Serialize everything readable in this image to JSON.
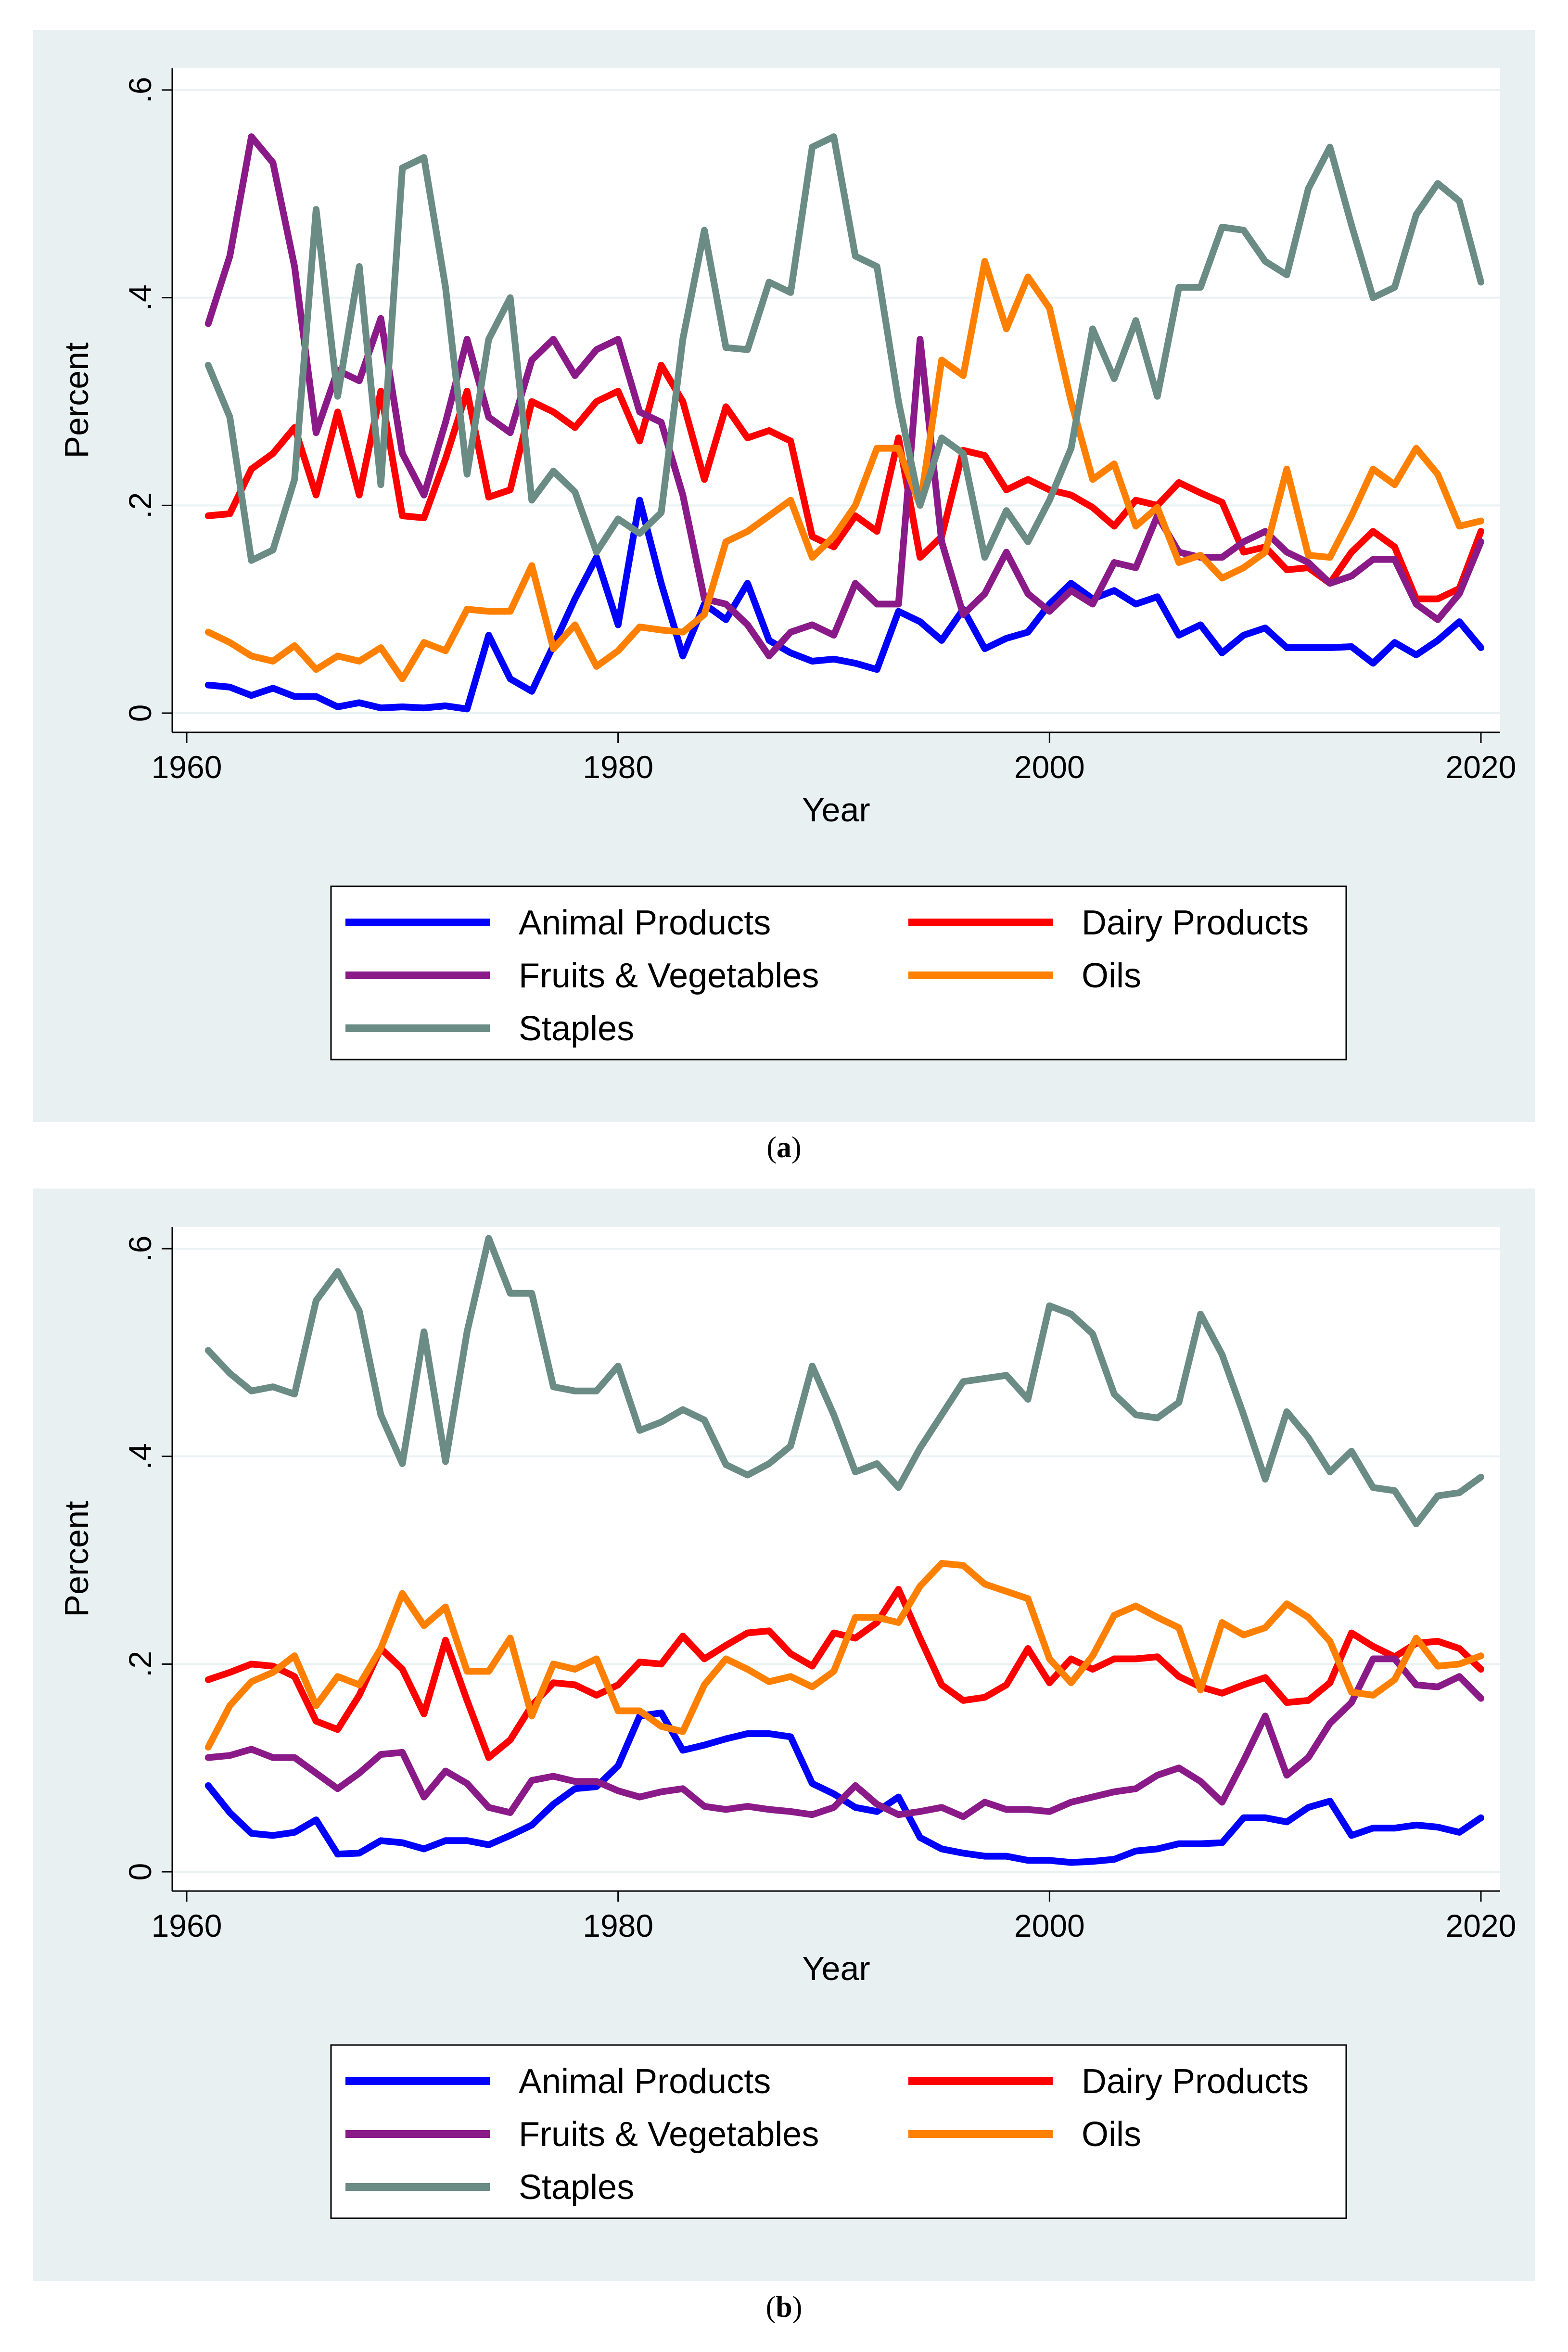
{
  "captions": {
    "a": "a",
    "b": "b"
  },
  "chart_data": [
    {
      "type": "line",
      "panel": "a",
      "xlabel": "Year",
      "ylabel": "Percent",
      "xlim": [
        1960,
        2020
      ],
      "ylim": [
        0,
        0.6
      ],
      "xticks": [
        1960,
        1980,
        2000,
        2020
      ],
      "yticks": [
        0,
        0.2,
        0.4,
        0.6
      ],
      "ytick_labels": [
        "0",
        ".2",
        ".4",
        ".6"
      ],
      "grid": true,
      "legend_position": "bottom",
      "x_start": 1961,
      "series": [
        {
          "name": "Animal Products",
          "color": "#0000ff",
          "values": [
            0.027,
            0.025,
            0.017,
            0.024,
            0.016,
            0.016,
            0.006,
            0.01,
            0.005,
            0.006,
            0.005,
            0.007,
            0.004,
            0.075,
            0.033,
            0.021,
            0.065,
            0.11,
            0.15,
            0.085,
            0.205,
            0.125,
            0.055,
            0.105,
            0.09,
            0.125,
            0.07,
            0.058,
            0.05,
            0.052,
            0.048,
            0.042,
            0.098,
            0.088,
            0.07,
            0.1,
            0.062,
            0.072,
            0.078,
            0.105,
            0.125,
            0.11,
            0.118,
            0.105,
            0.112,
            0.075,
            0.085,
            0.058,
            0.075,
            0.082,
            0.063,
            0.063,
            0.063,
            0.064,
            0.048,
            0.068,
            0.056,
            0.07,
            0.088,
            0.063
          ]
        },
        {
          "name": "Dairy Products",
          "color": "#ff0000",
          "values": [
            0.19,
            0.192,
            0.235,
            0.25,
            0.275,
            0.21,
            0.29,
            0.21,
            0.31,
            0.19,
            0.188,
            0.245,
            0.31,
            0.208,
            0.215,
            0.3,
            0.29,
            0.275,
            0.3,
            0.31,
            0.262,
            0.335,
            0.3,
            0.225,
            0.295,
            0.265,
            0.272,
            0.262,
            0.17,
            0.16,
            0.19,
            0.175,
            0.265,
            0.15,
            0.17,
            0.253,
            0.248,
            0.215,
            0.225,
            0.215,
            0.21,
            0.198,
            0.18,
            0.205,
            0.2,
            0.222,
            0.212,
            0.203,
            0.155,
            0.16,
            0.138,
            0.14,
            0.125,
            0.155,
            0.175,
            0.16,
            0.11,
            0.11,
            0.12,
            0.175
          ]
        },
        {
          "name": "Fruits & Vegetables",
          "color": "#8b1a89",
          "values": [
            0.375,
            0.44,
            0.555,
            0.53,
            0.43,
            0.27,
            0.33,
            0.32,
            0.38,
            0.25,
            0.21,
            0.28,
            0.36,
            0.285,
            0.27,
            0.34,
            0.36,
            0.325,
            0.35,
            0.36,
            0.29,
            0.28,
            0.21,
            0.11,
            0.105,
            0.085,
            0.055,
            0.078,
            0.085,
            0.075,
            0.125,
            0.105,
            0.105,
            0.36,
            0.165,
            0.095,
            0.115,
            0.155,
            0.115,
            0.098,
            0.118,
            0.105,
            0.145,
            0.14,
            0.19,
            0.155,
            0.15,
            0.15,
            0.165,
            0.175,
            0.155,
            0.145,
            0.125,
            0.132,
            0.148,
            0.148,
            0.105,
            0.09,
            0.115,
            0.165
          ]
        },
        {
          "name": "Oils",
          "color": "#ff8000",
          "values": [
            0.078,
            0.068,
            0.055,
            0.05,
            0.065,
            0.042,
            0.055,
            0.05,
            0.063,
            0.033,
            0.068,
            0.06,
            0.1,
            0.098,
            0.098,
            0.142,
            0.062,
            0.085,
            0.045,
            0.06,
            0.083,
            0.08,
            0.078,
            0.095,
            0.165,
            0.175,
            0.19,
            0.205,
            0.15,
            0.17,
            0.2,
            0.255,
            0.255,
            0.2,
            0.34,
            0.325,
            0.435,
            0.37,
            0.42,
            0.39,
            0.3,
            0.225,
            0.24,
            0.18,
            0.198,
            0.145,
            0.152,
            0.13,
            0.14,
            0.155,
            0.235,
            0.152,
            0.15,
            0.19,
            0.235,
            0.22,
            0.255,
            0.23,
            0.18,
            0.185
          ]
        },
        {
          "name": "Staples",
          "color": "#6b8c84",
          "values": [
            0.335,
            0.285,
            0.147,
            0.157,
            0.225,
            0.485,
            0.305,
            0.43,
            0.22,
            0.525,
            0.535,
            0.41,
            0.23,
            0.36,
            0.4,
            0.205,
            0.233,
            0.213,
            0.155,
            0.187,
            0.173,
            0.193,
            0.36,
            0.465,
            0.352,
            0.35,
            0.415,
            0.405,
            0.545,
            0.555,
            0.44,
            0.43,
            0.3,
            0.2,
            0.265,
            0.25,
            0.15,
            0.195,
            0.165,
            0.205,
            0.255,
            0.37,
            0.322,
            0.378,
            0.305,
            0.41,
            0.41,
            0.468,
            0.465,
            0.435,
            0.422,
            0.505,
            0.545,
            0.47,
            0.4,
            0.41,
            0.48,
            0.51,
            0.493,
            0.415
          ]
        }
      ]
    },
    {
      "type": "line",
      "panel": "b",
      "xlabel": "Year",
      "ylabel": "Percent",
      "xlim": [
        1960,
        2020
      ],
      "ylim": [
        0,
        0.6
      ],
      "xticks": [
        1960,
        1980,
        2000,
        2020
      ],
      "yticks": [
        0,
        0.2,
        0.4,
        0.6
      ],
      "ytick_labels": [
        "0",
        ".2",
        ".4",
        ".6"
      ],
      "grid": true,
      "legend_position": "bottom",
      "x_start": 1961,
      "series": [
        {
          "name": "Animal Products",
          "color": "#0000ff",
          "values": [
            0.083,
            0.057,
            0.037,
            0.035,
            0.038,
            0.05,
            0.017,
            0.018,
            0.03,
            0.028,
            0.022,
            0.03,
            0.03,
            0.026,
            0.035,
            0.045,
            0.065,
            0.08,
            0.082,
            0.102,
            0.15,
            0.153,
            0.117,
            0.122,
            0.128,
            0.133,
            0.133,
            0.13,
            0.085,
            0.075,
            0.062,
            0.058,
            0.072,
            0.033,
            0.022,
            0.018,
            0.015,
            0.015,
            0.011,
            0.011,
            0.009,
            0.01,
            0.012,
            0.02,
            0.022,
            0.027,
            0.027,
            0.028,
            0.052,
            0.052,
            0.048,
            0.062,
            0.068,
            0.035,
            0.042,
            0.042,
            0.045,
            0.043,
            0.038,
            0.052
          ]
        },
        {
          "name": "Dairy Products",
          "color": "#ff0000",
          "values": [
            0.185,
            0.192,
            0.2,
            0.198,
            0.188,
            0.145,
            0.137,
            0.17,
            0.215,
            0.195,
            0.152,
            0.223,
            0.165,
            0.11,
            0.127,
            0.16,
            0.182,
            0.18,
            0.17,
            0.18,
            0.202,
            0.2,
            0.227,
            0.205,
            0.218,
            0.23,
            0.232,
            0.21,
            0.198,
            0.23,
            0.225,
            0.24,
            0.272,
            0.225,
            0.18,
            0.165,
            0.168,
            0.18,
            0.215,
            0.182,
            0.205,
            0.195,
            0.205,
            0.205,
            0.207,
            0.188,
            0.178,
            0.172,
            0.18,
            0.187,
            0.163,
            0.165,
            0.182,
            0.23,
            0.217,
            0.207,
            0.22,
            0.222,
            0.215,
            0.195
          ]
        },
        {
          "name": "Fruits & Vegetables",
          "color": "#8b1a89",
          "values": [
            0.11,
            0.112,
            0.118,
            0.11,
            0.11,
            0.095,
            0.08,
            0.095,
            0.113,
            0.115,
            0.072,
            0.097,
            0.085,
            0.062,
            0.057,
            0.088,
            0.092,
            0.087,
            0.087,
            0.078,
            0.072,
            0.077,
            0.08,
            0.063,
            0.06,
            0.063,
            0.06,
            0.058,
            0.055,
            0.062,
            0.083,
            0.065,
            0.055,
            0.058,
            0.062,
            0.053,
            0.067,
            0.06,
            0.06,
            0.058,
            0.067,
            0.072,
            0.077,
            0.08,
            0.093,
            0.1,
            0.087,
            0.067,
            0.107,
            0.15,
            0.093,
            0.11,
            0.143,
            0.163,
            0.205,
            0.205,
            0.18,
            0.178,
            0.188,
            0.167
          ]
        },
        {
          "name": "Oils",
          "color": "#ff8000",
          "values": [
            0.12,
            0.16,
            0.183,
            0.192,
            0.208,
            0.16,
            0.188,
            0.18,
            0.215,
            0.268,
            0.237,
            0.255,
            0.193,
            0.193,
            0.225,
            0.15,
            0.2,
            0.195,
            0.205,
            0.155,
            0.155,
            0.14,
            0.135,
            0.18,
            0.205,
            0.195,
            0.183,
            0.188,
            0.178,
            0.193,
            0.245,
            0.245,
            0.24,
            0.275,
            0.297,
            0.295,
            0.277,
            0.27,
            0.263,
            0.205,
            0.182,
            0.208,
            0.247,
            0.256,
            0.245,
            0.235,
            0.175,
            0.24,
            0.228,
            0.235,
            0.258,
            0.245,
            0.222,
            0.173,
            0.17,
            0.185,
            0.225,
            0.198,
            0.2,
            0.208
          ]
        },
        {
          "name": "Staples",
          "color": "#6b8c84",
          "values": [
            0.502,
            0.48,
            0.463,
            0.467,
            0.46,
            0.55,
            0.578,
            0.54,
            0.44,
            0.393,
            0.52,
            0.395,
            0.52,
            0.61,
            0.557,
            0.557,
            0.467,
            0.463,
            0.463,
            0.487,
            0.425,
            0.433,
            0.445,
            0.435,
            0.392,
            0.382,
            0.393,
            0.41,
            0.487,
            0.44,
            0.385,
            0.393,
            0.37,
            0.408,
            0.44,
            0.472,
            0.475,
            0.478,
            0.455,
            0.545,
            0.537,
            0.518,
            0.46,
            0.44,
            0.437,
            0.452,
            0.537,
            0.498,
            0.44,
            0.378,
            0.443,
            0.418,
            0.385,
            0.405,
            0.37,
            0.367,
            0.335,
            0.362,
            0.365,
            0.38
          ]
        }
      ]
    }
  ]
}
